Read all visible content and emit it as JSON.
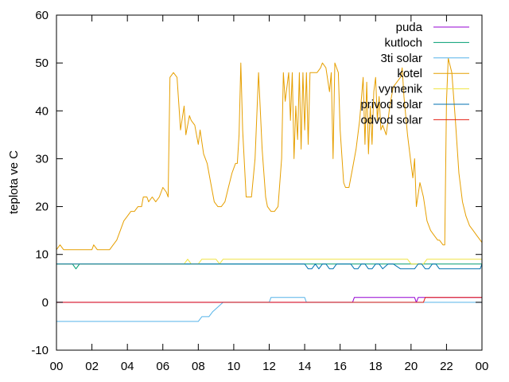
{
  "chart_data": {
    "type": "line",
    "title": "",
    "xlabel": "",
    "ylabel": "teplota ve C",
    "xlim": [
      0,
      24
    ],
    "ylim": [
      -10,
      60
    ],
    "x_tick_labels": [
      "00",
      "02",
      "04",
      "06",
      "08",
      "10",
      "12",
      "14",
      "16",
      "18",
      "20",
      "22",
      "00"
    ],
    "y_ticks": [
      -10,
      0,
      10,
      20,
      30,
      40,
      50,
      60
    ],
    "grid": false,
    "legend_position": "top-right",
    "series": [
      {
        "name": "puda",
        "color": "#9400d3",
        "points": [
          [
            0,
            0
          ],
          [
            16.7,
            0
          ],
          [
            16.8,
            1
          ],
          [
            20.2,
            1
          ],
          [
            20.3,
            0
          ],
          [
            20.4,
            1
          ],
          [
            24,
            1
          ]
        ]
      },
      {
        "name": "kutloch",
        "color": "#009e73",
        "points": [
          [
            0,
            8
          ],
          [
            0.9,
            8
          ],
          [
            1.1,
            7
          ],
          [
            1.3,
            8
          ],
          [
            24,
            8
          ]
        ]
      },
      {
        "name": "3ti solar",
        "color": "#56b4e9",
        "points": [
          [
            0,
            -4
          ],
          [
            8,
            -4
          ],
          [
            8.2,
            -3
          ],
          [
            8.6,
            -3
          ],
          [
            8.8,
            -2
          ],
          [
            9.1,
            -1
          ],
          [
            9.4,
            0
          ],
          [
            12,
            0
          ],
          [
            12.1,
            1
          ],
          [
            14,
            1
          ],
          [
            14.1,
            0
          ],
          [
            24,
            0
          ]
        ]
      },
      {
        "name": "kotel",
        "color": "#e69f00",
        "points": [
          [
            0,
            11
          ],
          [
            0.2,
            12
          ],
          [
            0.4,
            11
          ],
          [
            1,
            11
          ],
          [
            1.5,
            11
          ],
          [
            2,
            11
          ],
          [
            2.1,
            12
          ],
          [
            2.3,
            11
          ],
          [
            3,
            11
          ],
          [
            3.2,
            12
          ],
          [
            3.4,
            13
          ],
          [
            3.6,
            15
          ],
          [
            3.8,
            17
          ],
          [
            4.0,
            18
          ],
          [
            4.2,
            19
          ],
          [
            4.4,
            19
          ],
          [
            4.6,
            20
          ],
          [
            4.8,
            20
          ],
          [
            4.9,
            22
          ],
          [
            5.1,
            22
          ],
          [
            5.2,
            21
          ],
          [
            5.4,
            22
          ],
          [
            5.6,
            21
          ],
          [
            5.8,
            22
          ],
          [
            6.0,
            24
          ],
          [
            6.2,
            23
          ],
          [
            6.3,
            22
          ],
          [
            6.4,
            47
          ],
          [
            6.6,
            48
          ],
          [
            6.8,
            47
          ],
          [
            7.0,
            36
          ],
          [
            7.2,
            41
          ],
          [
            7.3,
            35
          ],
          [
            7.5,
            39
          ],
          [
            7.6,
            38
          ],
          [
            7.8,
            37
          ],
          [
            8.0,
            33
          ],
          [
            8.1,
            36
          ],
          [
            8.3,
            31
          ],
          [
            8.5,
            29
          ],
          [
            8.7,
            25
          ],
          [
            8.9,
            21
          ],
          [
            9.1,
            20
          ],
          [
            9.3,
            20
          ],
          [
            9.5,
            21
          ],
          [
            9.7,
            24
          ],
          [
            9.9,
            27
          ],
          [
            10.1,
            29
          ],
          [
            10.2,
            29
          ],
          [
            10.3,
            35
          ],
          [
            10.4,
            50
          ],
          [
            10.5,
            36
          ],
          [
            10.6,
            29
          ],
          [
            10.7,
            22
          ],
          [
            11.0,
            22
          ],
          [
            11.2,
            30
          ],
          [
            11.4,
            48
          ],
          [
            11.6,
            32
          ],
          [
            11.8,
            22
          ],
          [
            11.9,
            20
          ],
          [
            12.1,
            19
          ],
          [
            12.3,
            19
          ],
          [
            12.5,
            20
          ],
          [
            12.7,
            30
          ],
          [
            12.8,
            48
          ],
          [
            12.9,
            42
          ],
          [
            13.1,
            48
          ],
          [
            13.2,
            38
          ],
          [
            13.3,
            48
          ],
          [
            13.4,
            30
          ],
          [
            13.5,
            41
          ],
          [
            13.6,
            34
          ],
          [
            13.7,
            48
          ],
          [
            13.8,
            32
          ],
          [
            13.9,
            48
          ],
          [
            14.0,
            36
          ],
          [
            14.1,
            48
          ],
          [
            14.2,
            33
          ],
          [
            14.3,
            48
          ],
          [
            14.5,
            48
          ],
          [
            14.7,
            48
          ],
          [
            14.9,
            49
          ],
          [
            15.0,
            50
          ],
          [
            15.2,
            49
          ],
          [
            15.4,
            44
          ],
          [
            15.5,
            48
          ],
          [
            15.6,
            30
          ],
          [
            15.7,
            50
          ],
          [
            15.9,
            48
          ],
          [
            16.0,
            36
          ],
          [
            16.2,
            25
          ],
          [
            16.3,
            24
          ],
          [
            16.5,
            24
          ],
          [
            16.7,
            28
          ],
          [
            16.9,
            32
          ],
          [
            17.1,
            38
          ],
          [
            17.3,
            47
          ],
          [
            17.4,
            33
          ],
          [
            17.5,
            46
          ],
          [
            17.6,
            31
          ],
          [
            17.7,
            41
          ],
          [
            17.8,
            33
          ],
          [
            17.9,
            44
          ],
          [
            18.0,
            47
          ],
          [
            18.1,
            38
          ],
          [
            18.2,
            43
          ],
          [
            18.3,
            36
          ],
          [
            18.4,
            37
          ],
          [
            18.6,
            35
          ],
          [
            18.7,
            38
          ],
          [
            18.8,
            41
          ],
          [
            19.0,
            45
          ],
          [
            19.2,
            46
          ],
          [
            19.4,
            47
          ],
          [
            19.5,
            49
          ],
          [
            19.6,
            43
          ],
          [
            19.8,
            35
          ],
          [
            20.0,
            29
          ],
          [
            20.1,
            26
          ],
          [
            20.2,
            30
          ],
          [
            20.3,
            20
          ],
          [
            20.5,
            25
          ],
          [
            20.7,
            22
          ],
          [
            20.9,
            17
          ],
          [
            21.1,
            15
          ],
          [
            21.3,
            14
          ],
          [
            21.5,
            13
          ],
          [
            21.6,
            13
          ],
          [
            21.8,
            12
          ],
          [
            21.9,
            12
          ],
          [
            22.0,
            42
          ],
          [
            22.1,
            51
          ],
          [
            22.3,
            48
          ],
          [
            22.5,
            38
          ],
          [
            22.7,
            27
          ],
          [
            22.9,
            21
          ],
          [
            23.1,
            18
          ],
          [
            23.3,
            16
          ],
          [
            23.5,
            15
          ],
          [
            23.7,
            14
          ],
          [
            23.9,
            13
          ],
          [
            24.1,
            12
          ],
          [
            24.3,
            12
          ],
          [
            24.5,
            12
          ],
          [
            24.7,
            11
          ]
        ]
      },
      {
        "name": "vymenik",
        "color": "#f0e442",
        "points": [
          [
            0,
            8
          ],
          [
            7.2,
            8
          ],
          [
            7.4,
            9
          ],
          [
            7.6,
            8
          ],
          [
            8.0,
            8
          ],
          [
            8.2,
            9
          ],
          [
            9.0,
            9
          ],
          [
            9.2,
            8
          ],
          [
            9.4,
            9
          ],
          [
            19.8,
            9
          ],
          [
            20.0,
            8
          ],
          [
            20.7,
            8
          ],
          [
            20.9,
            9
          ],
          [
            24,
            9
          ]
        ]
      },
      {
        "name": "privod solar",
        "color": "#0072b2",
        "points": [
          [
            0,
            8
          ],
          [
            7.0,
            8
          ],
          [
            9.0,
            8
          ],
          [
            14.0,
            8
          ],
          [
            14.2,
            7
          ],
          [
            14.4,
            7
          ],
          [
            14.6,
            8
          ],
          [
            14.8,
            7
          ],
          [
            15.0,
            8
          ],
          [
            15.2,
            8
          ],
          [
            15.4,
            7
          ],
          [
            15.6,
            7
          ],
          [
            15.8,
            8
          ],
          [
            16.6,
            8
          ],
          [
            16.8,
            7
          ],
          [
            17.0,
            7
          ],
          [
            17.2,
            8
          ],
          [
            17.4,
            8
          ],
          [
            17.6,
            7
          ],
          [
            17.8,
            7
          ],
          [
            18.0,
            8
          ],
          [
            18.2,
            8
          ],
          [
            18.4,
            7
          ],
          [
            18.7,
            8
          ],
          [
            19.0,
            8
          ],
          [
            19.4,
            7
          ],
          [
            20.2,
            7
          ],
          [
            20.4,
            8
          ],
          [
            20.6,
            8
          ],
          [
            20.8,
            7
          ],
          [
            21.0,
            7
          ],
          [
            21.2,
            8
          ],
          [
            21.4,
            8
          ],
          [
            21.6,
            7
          ],
          [
            23.9,
            7
          ],
          [
            24.0,
            8
          ],
          [
            24.1,
            7
          ],
          [
            24.3,
            7
          ]
        ]
      },
      {
        "name": "odvod solar",
        "color": "#e51e10",
        "points": [
          [
            0,
            0
          ],
          [
            20.7,
            0
          ],
          [
            20.8,
            1
          ],
          [
            24,
            1
          ]
        ]
      }
    ]
  }
}
